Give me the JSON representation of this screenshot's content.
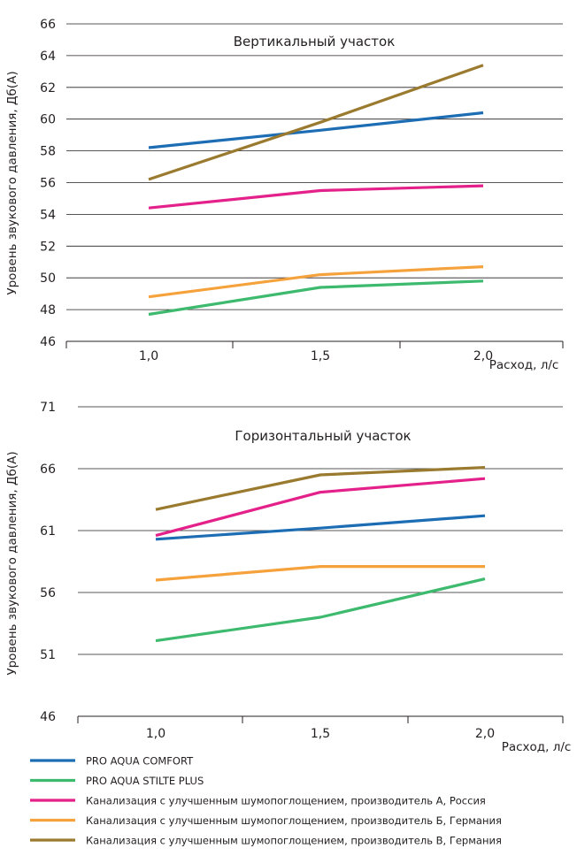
{
  "chart_data": [
    {
      "type": "line",
      "title": "Вертикальный участок",
      "ylabel": "Уровень звукового давления, Дб(А)",
      "xlabel": "Расход, л/с",
      "categories": [
        "1,0",
        "1,5",
        "2,0"
      ],
      "ylim": [
        46,
        66
      ],
      "yticks": [
        "46",
        "48",
        "50",
        "52",
        "54",
        "56",
        "58",
        "60",
        "62",
        "64",
        "66"
      ],
      "grid": true,
      "series": [
        {
          "name": "PRO AQUA COMFORT",
          "values": [
            58.2,
            59.3,
            60.4
          ]
        },
        {
          "name": "PRO AQUA STILTE PLUS",
          "values": [
            47.7,
            49.4,
            49.8
          ]
        },
        {
          "name": "Канализация с улучшенным шумопоглощением, производитель А, Россия",
          "values": [
            54.4,
            55.5,
            55.8
          ]
        },
        {
          "name": "Канализация с улучшенным шумопоглощением, производитель Б, Германия",
          "values": [
            48.8,
            50.2,
            50.7
          ]
        },
        {
          "name": "Канализация с улучшенным шумопоглощением, производитель В, Германия",
          "values": [
            56.2,
            59.8,
            63.4
          ]
        }
      ]
    },
    {
      "type": "line",
      "title": "Горизонтальный участок",
      "ylabel": "Уровень звукового давления, Дб(А)",
      "xlabel": "Расход, л/с",
      "categories": [
        "1,0",
        "1,5",
        "2,0"
      ],
      "ylim": [
        46,
        71
      ],
      "yticks": [
        "46",
        "51",
        "56",
        "61",
        "66",
        "71"
      ],
      "grid": true,
      "series": [
        {
          "name": "PRO AQUA COMFORT",
          "values": [
            60.3,
            61.2,
            62.2
          ]
        },
        {
          "name": "PRO AQUA STILTE PLUS",
          "values": [
            52.1,
            54.0,
            57.1
          ]
        },
        {
          "name": "Канализация с улучшенным шумопоглощением, производитель А, Россия",
          "values": [
            60.6,
            64.1,
            65.2
          ]
        },
        {
          "name": "Канализация с улучшенным шумопоглощением, производитель Б, Германия",
          "values": [
            57.0,
            58.1,
            58.1
          ]
        },
        {
          "name": "Канализация с улучшенным шумопоглощением, производитель В, Германия",
          "values": [
            62.7,
            65.5,
            66.1
          ]
        }
      ]
    }
  ],
  "legend": {
    "placement": "bottom",
    "items": [
      {
        "label": "PRO AQUA COMFORT",
        "color": "#1c6db3"
      },
      {
        "label": "PRO AQUA STILTE PLUS",
        "color": "#3dba6e"
      },
      {
        "label": "Канализация с улучшенным шумопоглощением, производитель А, Россия",
        "color": "#e4218a"
      },
      {
        "label": "Канализация с улучшенным шумопоглощением, производитель Б, Германия",
        "color": "#f6a23c"
      },
      {
        "label": "Канализация с улучшенным шумопоглощением, производитель В, Германия",
        "color": "#9a7a2e"
      }
    ]
  }
}
